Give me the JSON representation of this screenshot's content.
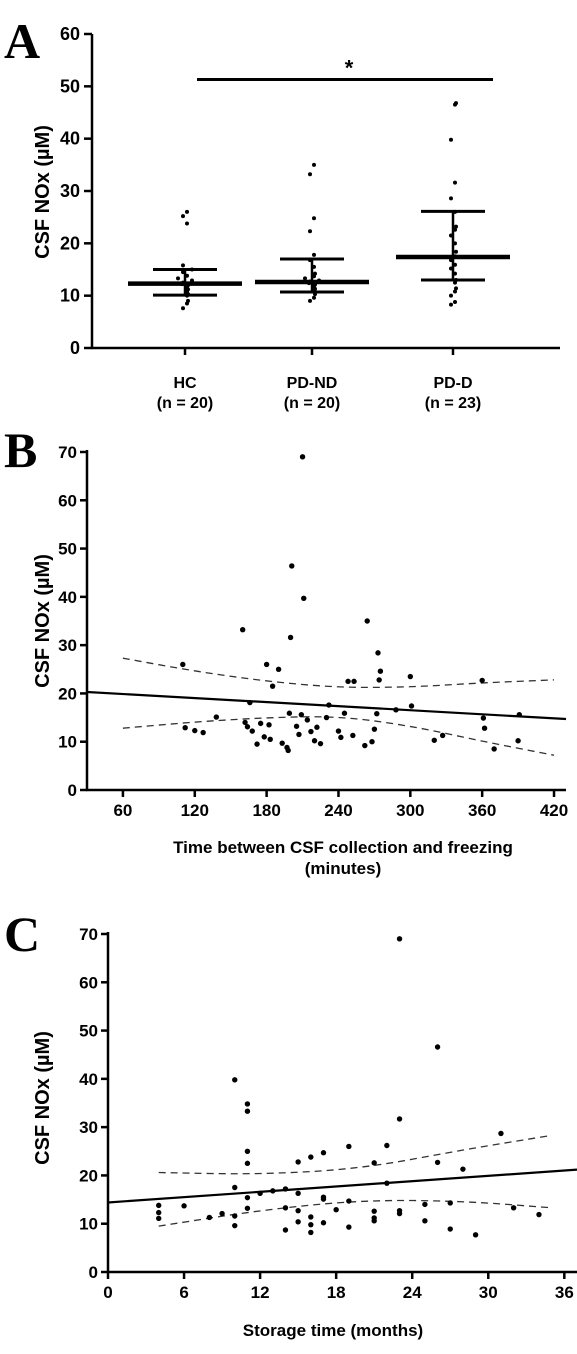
{
  "chart_data": [
    {
      "panel": "A",
      "type": "scatter",
      "ylabel": "CSF NOx (µM)",
      "ylim": [
        0,
        60
      ],
      "yticks": [
        0,
        10,
        20,
        30,
        40,
        50,
        60
      ],
      "categories": [
        {
          "name": "HC",
          "n_label": "(n = 20)"
        },
        {
          "name": "PD-ND",
          "n_label": "(n = 20)"
        },
        {
          "name": "PD-D",
          "n_label": "(n = 23)"
        }
      ],
      "groups": [
        {
          "median": 12.3,
          "q1": 10.1,
          "q3": 15.0,
          "points": [
            7.6,
            8.5,
            9.0,
            10.0,
            10.3,
            10.8,
            11.2,
            11.6,
            12.0,
            12.2,
            12.5,
            12.9,
            13.3,
            13.8,
            14.5,
            15.0,
            15.8,
            23.8,
            25.2,
            26.0
          ]
        },
        {
          "median": 12.6,
          "q1": 10.7,
          "q3": 17.0,
          "points": [
            9.0,
            9.6,
            10.3,
            10.8,
            11.3,
            11.8,
            12.1,
            12.4,
            12.7,
            12.9,
            13.3,
            13.7,
            14.2,
            15.5,
            16.8,
            17.8,
            22.3,
            24.8,
            33.2,
            35.0
          ]
        },
        {
          "median": 17.4,
          "q1": 13.0,
          "q3": 26.1,
          "points": [
            8.3,
            8.8,
            10.0,
            10.8,
            11.4,
            12.5,
            13.0,
            14.2,
            15.2,
            15.9,
            16.8,
            17.5,
            18.4,
            20.0,
            21.5,
            22.6,
            23.2,
            26.0,
            28.6,
            31.6,
            39.8,
            46.5,
            46.8
          ]
        }
      ],
      "significance": {
        "from": "HC",
        "to": "PD-D",
        "label": "*",
        "y": 51.3
      }
    },
    {
      "panel": "B",
      "type": "scatter",
      "ylabel": "CSF NOx (µM)",
      "xlabel": [
        "Time between CSF collection and freezing",
        "(minutes)"
      ],
      "xlim": [
        30,
        430
      ],
      "ylim": [
        0,
        70
      ],
      "xticks": [
        60,
        120,
        180,
        240,
        300,
        360,
        420
      ],
      "yticks": [
        0,
        10,
        20,
        30,
        40,
        50,
        60,
        70
      ],
      "regression": {
        "start": [
          30,
          20.3
        ],
        "end": [
          430,
          14.7
        ]
      },
      "ci_upper": [
        [
          60,
          27.3
        ],
        [
          120,
          24.6
        ],
        [
          180,
          22.5
        ],
        [
          240,
          21.2
        ],
        [
          300,
          21.3
        ],
        [
          360,
          22.2
        ],
        [
          420,
          22.8
        ]
      ],
      "ci_lower": [
        [
          60,
          12.8
        ],
        [
          120,
          14.1
        ],
        [
          180,
          15.0
        ],
        [
          240,
          15.3
        ],
        [
          300,
          13.3
        ],
        [
          360,
          10.1
        ],
        [
          420,
          7.2
        ]
      ],
      "points": [
        [
          110,
          26.0
        ],
        [
          112,
          12.9
        ],
        [
          120,
          12.3
        ],
        [
          127,
          11.9
        ],
        [
          138,
          15.1
        ],
        [
          160,
          33.2
        ],
        [
          162,
          14.0
        ],
        [
          164,
          13.1
        ],
        [
          166,
          18.1
        ],
        [
          168,
          12.2
        ],
        [
          172,
          9.5
        ],
        [
          175,
          13.8
        ],
        [
          178,
          11.0
        ],
        [
          180,
          26.0
        ],
        [
          182,
          13.5
        ],
        [
          183,
          10.5
        ],
        [
          185,
          21.5
        ],
        [
          190,
          25.0
        ],
        [
          193,
          9.7
        ],
        [
          197,
          8.8
        ],
        [
          198,
          8.2
        ],
        [
          199,
          15.9
        ],
        [
          200,
          31.6
        ],
        [
          201,
          46.4
        ],
        [
          205,
          13.2
        ],
        [
          207,
          11.5
        ],
        [
          209,
          15.6
        ],
        [
          210,
          69.0
        ],
        [
          211,
          39.7
        ],
        [
          214,
          14.5
        ],
        [
          217,
          12.1
        ],
        [
          220,
          10.2
        ],
        [
          222,
          13.0
        ],
        [
          225,
          9.6
        ],
        [
          230,
          15.0
        ],
        [
          232,
          17.6
        ],
        [
          240,
          12.2
        ],
        [
          242,
          10.9
        ],
        [
          245,
          15.9
        ],
        [
          248,
          22.5
        ],
        [
          252,
          11.3
        ],
        [
          253,
          22.5
        ],
        [
          262,
          9.2
        ],
        [
          264,
          35.0
        ],
        [
          268,
          10.0
        ],
        [
          270,
          12.6
        ],
        [
          272,
          15.8
        ],
        [
          273,
          28.4
        ],
        [
          274,
          22.8
        ],
        [
          275,
          24.6
        ],
        [
          288,
          16.6
        ],
        [
          300,
          23.5
        ],
        [
          301,
          17.4
        ],
        [
          320,
          10.3
        ],
        [
          327,
          11.3
        ],
        [
          360,
          22.7
        ],
        [
          361,
          14.9
        ],
        [
          362,
          12.8
        ],
        [
          370,
          8.5
        ],
        [
          390,
          10.2
        ],
        [
          391,
          15.6
        ]
      ]
    },
    {
      "panel": "C",
      "type": "scatter",
      "ylabel": "CSF NOx (µM)",
      "xlabel": [
        "Storage time (months)"
      ],
      "xlim": [
        0,
        37
      ],
      "ylim": [
        0,
        70
      ],
      "xticks": [
        0,
        6,
        12,
        18,
        24,
        30,
        36
      ],
      "yticks": [
        0,
        10,
        20,
        30,
        40,
        50,
        60,
        70
      ],
      "regression": {
        "start": [
          0,
          14.4
        ],
        "end": [
          37,
          21.2
        ]
      },
      "ci_upper": [
        [
          4,
          20.6
        ],
        [
          12,
          20.2
        ],
        [
          20,
          21.4
        ],
        [
          28,
          25.3
        ],
        [
          35,
          28.3
        ]
      ],
      "ci_lower": [
        [
          4,
          9.5
        ],
        [
          12,
          12.8
        ],
        [
          20,
          14.9
        ],
        [
          28,
          14.7
        ],
        [
          35,
          13.3
        ]
      ],
      "points": [
        [
          4,
          13.8
        ],
        [
          4,
          12.3
        ],
        [
          4,
          11.1
        ],
        [
          6,
          13.7
        ],
        [
          8,
          11.3
        ],
        [
          9,
          12.1
        ],
        [
          10,
          17.5
        ],
        [
          10,
          11.6
        ],
        [
          10,
          9.6
        ],
        [
          10,
          39.8
        ],
        [
          11,
          34.8
        ],
        [
          11,
          33.3
        ],
        [
          11,
          25.0
        ],
        [
          11,
          22.5
        ],
        [
          11,
          15.4
        ],
        [
          11,
          13.2
        ],
        [
          12,
          16.3
        ],
        [
          13,
          16.8
        ],
        [
          14,
          17.2
        ],
        [
          14,
          13.3
        ],
        [
          14,
          8.7
        ],
        [
          15,
          22.8
        ],
        [
          15,
          16.3
        ],
        [
          15,
          12.7
        ],
        [
          15,
          10.4
        ],
        [
          16,
          23.8
        ],
        [
          16,
          11.4
        ],
        [
          16,
          9.8
        ],
        [
          16,
          8.2
        ],
        [
          17,
          24.7
        ],
        [
          17,
          15.5
        ],
        [
          17,
          15.1
        ],
        [
          17,
          10.2
        ],
        [
          18,
          12.9
        ],
        [
          19,
          26.0
        ],
        [
          19,
          14.7
        ],
        [
          19,
          9.3
        ],
        [
          21,
          22.6
        ],
        [
          21,
          12.6
        ],
        [
          21,
          11.2
        ],
        [
          21,
          10.6
        ],
        [
          22,
          26.2
        ],
        [
          22,
          18.4
        ],
        [
          23,
          69.0
        ],
        [
          23,
          31.7
        ],
        [
          23,
          12.7
        ],
        [
          23,
          12.1
        ],
        [
          25,
          14.0
        ],
        [
          25,
          10.6
        ],
        [
          26,
          46.6
        ],
        [
          26,
          22.7
        ],
        [
          27,
          14.3
        ],
        [
          27,
          8.9
        ],
        [
          28,
          21.3
        ],
        [
          29,
          7.7
        ],
        [
          31,
          28.7
        ],
        [
          32,
          13.3
        ],
        [
          34,
          11.9
        ]
      ]
    }
  ]
}
